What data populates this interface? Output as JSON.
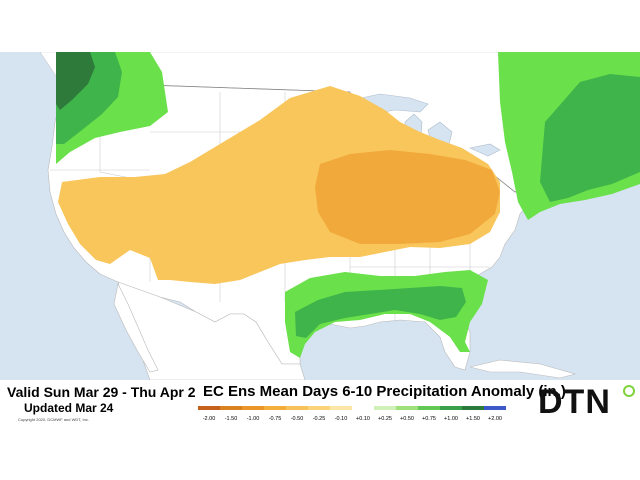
{
  "header": {
    "valid": "Valid Sun Mar 29 - Thu Apr 2",
    "updated": "Updated Mar 24",
    "copyright": "Copyright 2020, DCMWF and WDT, Inc.",
    "title": "EC Ens Mean Days 6-10 Precipitation Anomaly (in.)"
  },
  "scale": {
    "labels": [
      "-2.00",
      "-1.50",
      "-1.00",
      "-0.75",
      "-0.50",
      "-0.25",
      "-0.10",
      "+0.10",
      "+0.25",
      "+0.50",
      "+0.75",
      "+1.00",
      "+1.50",
      "+2.00"
    ],
    "colors": [
      "#c4621c",
      "#d9801f",
      "#e9952a",
      "#f2ad3a",
      "#f7c25a",
      "#fad37b",
      "#fbe6a8",
      "#ffffff",
      "#d0f0b8",
      "#9ee07a",
      "#63c853",
      "#3aa14a",
      "#2a7a3a",
      "#3b57c9"
    ]
  },
  "logo": {
    "text": "DTN",
    "accent": "#7fd23c"
  },
  "colors": {
    "water": "#d6e4f2",
    "land": "#ffffff",
    "dry_light": "#f8c65a",
    "dry_dark": "#f2a93c",
    "wet_light": "#6ae04a",
    "wet_mid": "#3fb44a",
    "wet_dark": "#2d7a3a"
  }
}
